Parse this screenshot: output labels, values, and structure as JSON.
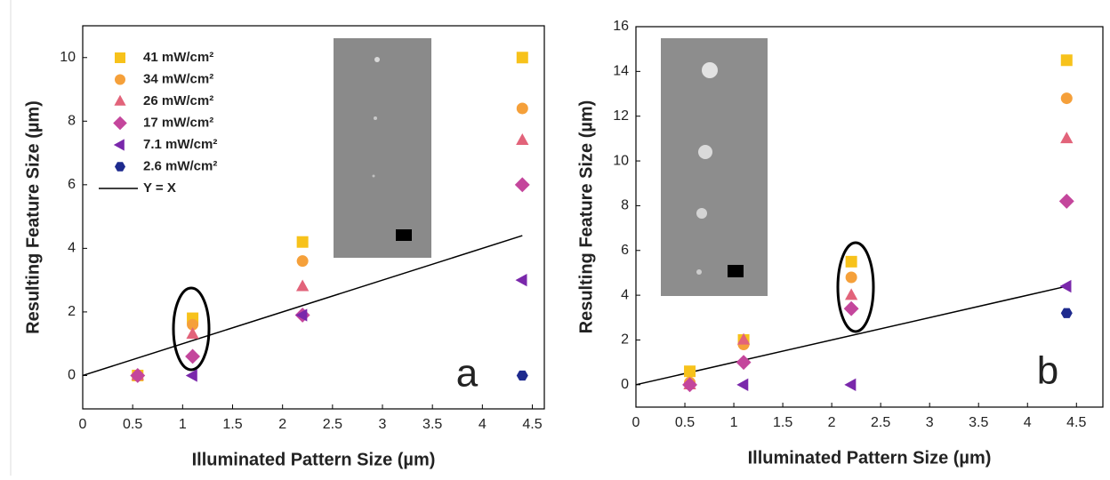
{
  "chart_data": [
    {
      "type": "scatter",
      "panel_label": "a",
      "x_label": "Illuminated Pattern Size (µm)",
      "y_label": "Resulting Feature Size (µm)",
      "x": [
        0.55,
        1.1,
        2.2,
        4.4
      ],
      "xlim": [
        0,
        4.62
      ],
      "xticks": [
        0,
        0.5,
        1,
        1.5,
        2,
        2.5,
        3,
        3.5,
        4,
        4.5
      ],
      "ylim": [
        -1.05,
        11
      ],
      "yticks": [
        0,
        2,
        4,
        6,
        8,
        10
      ],
      "legend": "upper left",
      "series": [
        {
          "name": "41 mW/cm²",
          "color": "#f7c21b",
          "marker": "square",
          "values": [
            0,
            1.8,
            4.2,
            10
          ]
        },
        {
          "name": "34 mW/cm²",
          "color": "#f5a03a",
          "marker": "circle",
          "values": [
            0,
            1.6,
            3.6,
            8.4
          ]
        },
        {
          "name": "26 mW/cm²",
          "color": "#e2637a",
          "marker": "triangle-up",
          "values": [
            0,
            1.3,
            2.8,
            7.4
          ]
        },
        {
          "name": "17 mW/cm²",
          "color": "#c4469c",
          "marker": "diamond",
          "values": [
            0,
            0.6,
            1.9,
            6.0
          ]
        },
        {
          "name": "7.1 mW/cm²",
          "color": "#7a28ab",
          "marker": "triangle-left",
          "values": [
            null,
            0,
            1.9,
            3.0
          ]
        },
        {
          "name": "2.6 mW/cm²",
          "color": "#1e2a8e",
          "marker": "hexagon",
          "values": [
            null,
            null,
            null,
            0
          ]
        }
      ],
      "line": {
        "name": "Y = X",
        "color": "#000000",
        "x": [
          0,
          4.4
        ],
        "values": [
          0,
          4.4
        ]
      }
    },
    {
      "type": "scatter",
      "panel_label": "b",
      "x_label": "Illuminated Pattern Size (µm)",
      "y_label": "Resulting Feature Size (µm)",
      "x": [
        0.55,
        1.1,
        2.2,
        4.4
      ],
      "xlim": [
        0,
        4.77
      ],
      "xticks": [
        0,
        0.5,
        1,
        1.5,
        2,
        2.5,
        3,
        3.5,
        4,
        4.5
      ],
      "ylim": [
        -1,
        16
      ],
      "yticks": [
        0,
        2,
        4,
        6,
        8,
        10,
        12,
        14,
        16
      ],
      "series": [
        {
          "color": "#f7c21b",
          "marker": "square",
          "values": [
            0.6,
            2.0,
            5.5,
            14.5
          ]
        },
        {
          "color": "#f5a03a",
          "marker": "circle",
          "values": [
            0.1,
            1.8,
            4.8,
            12.8
          ]
        },
        {
          "color": "#e2637a",
          "marker": "triangle-up",
          "values": [
            0,
            2.0,
            4.0,
            11.0
          ]
        },
        {
          "color": "#c4469c",
          "marker": "diamond",
          "values": [
            0,
            1.0,
            3.4,
            8.2
          ]
        },
        {
          "color": "#7a28ab",
          "marker": "triangle-left",
          "values": [
            null,
            0,
            0,
            4.4
          ]
        },
        {
          "color": "#1e2a8e",
          "marker": "hexagon",
          "values": [
            null,
            null,
            null,
            3.2
          ]
        }
      ],
      "line": {
        "color": "#000000",
        "x": [
          0,
          4.4
        ],
        "values": [
          0,
          4.4
        ]
      }
    }
  ]
}
